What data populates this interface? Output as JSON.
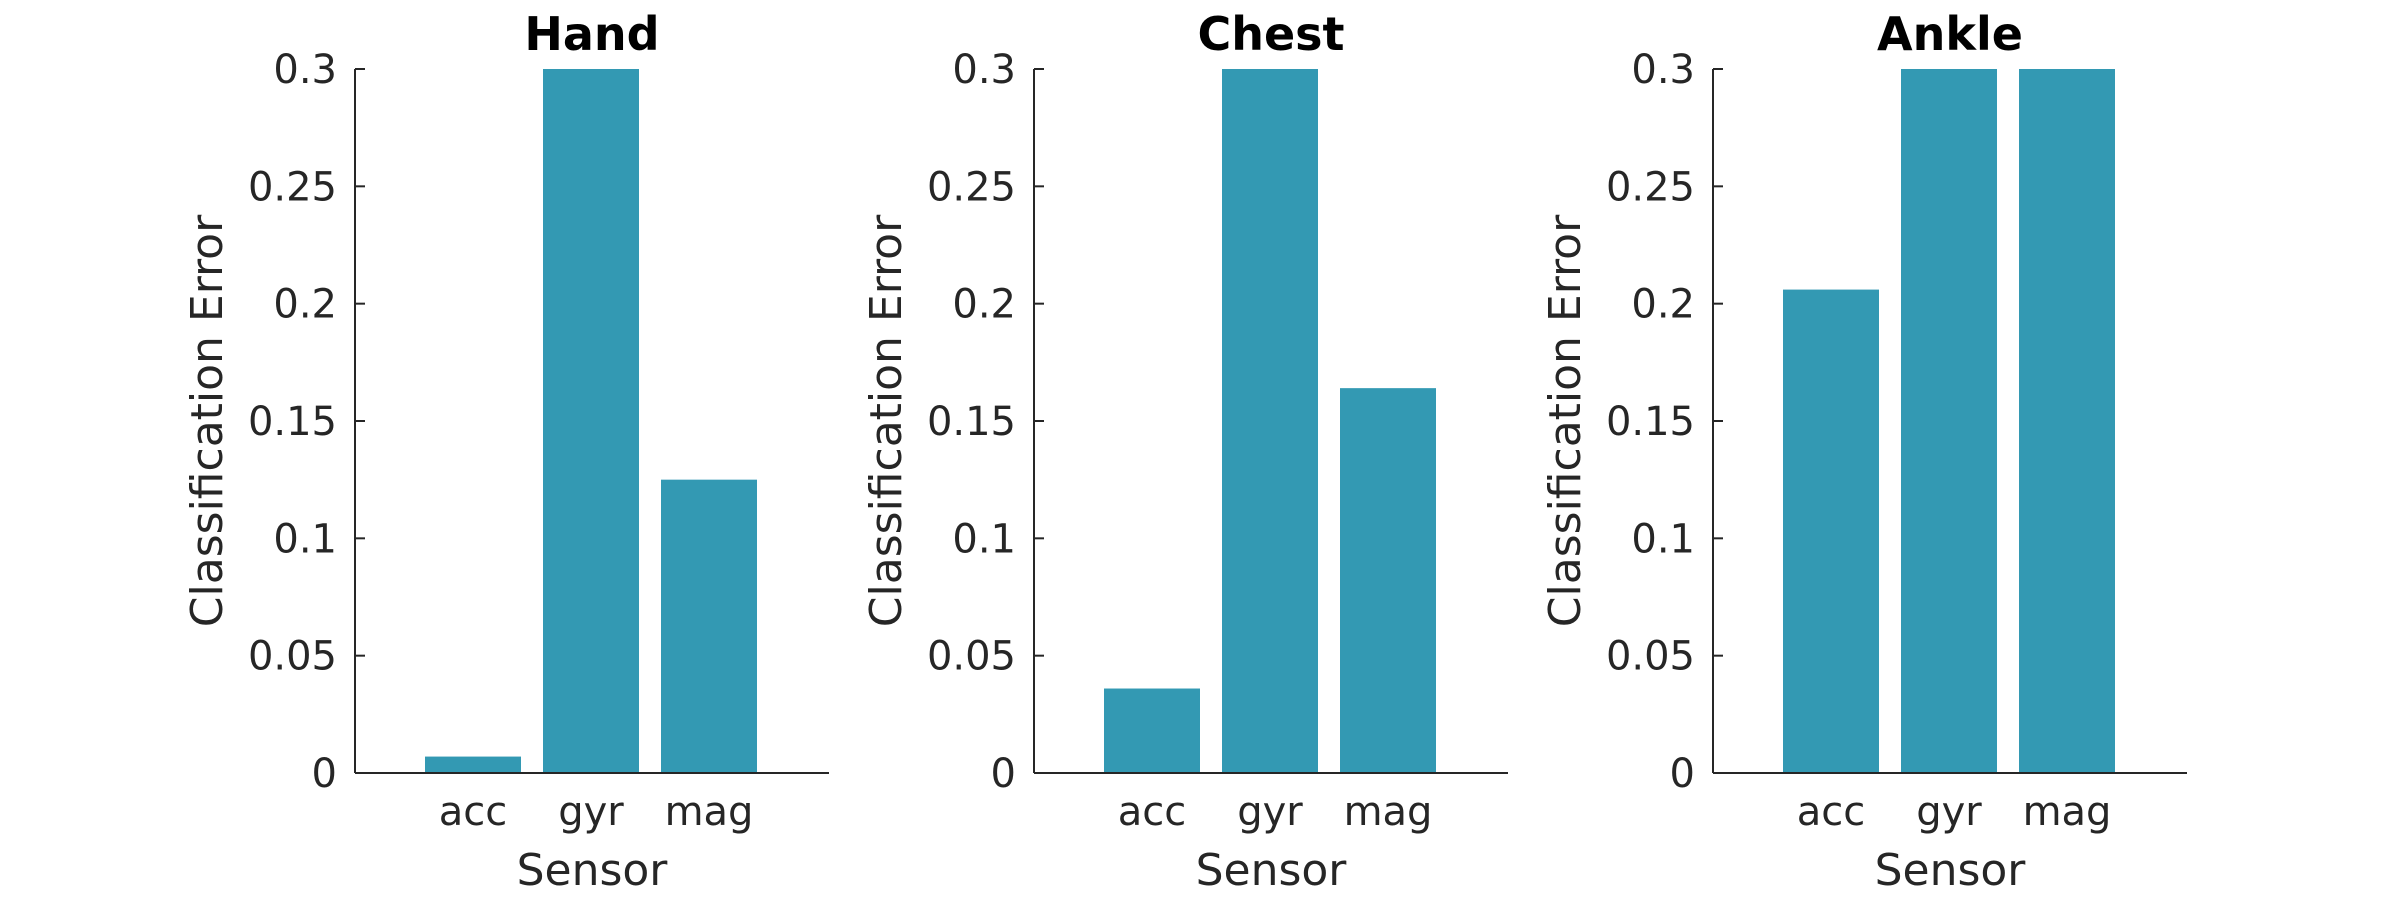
{
  "chart_data": [
    {
      "type": "bar",
      "title": "Hand",
      "xlabel": "Sensor",
      "ylabel": "Classification Error",
      "categories": [
        "acc",
        "gyr",
        "mag"
      ],
      "values": [
        0.007,
        0.3,
        0.125
      ],
      "ylim": [
        0,
        0.3
      ],
      "yticks": [
        "0",
        "0.05",
        "0.1",
        "0.15",
        "0.2",
        "0.25",
        "0.3"
      ],
      "grid": false
    },
    {
      "type": "bar",
      "title": "Chest",
      "xlabel": "Sensor",
      "ylabel": "Classification Error",
      "categories": [
        "acc",
        "gyr",
        "mag"
      ],
      "values": [
        0.036,
        0.3,
        0.164
      ],
      "ylim": [
        0,
        0.3
      ],
      "yticks": [
        "0",
        "0.05",
        "0.1",
        "0.15",
        "0.2",
        "0.25",
        "0.3"
      ],
      "grid": false
    },
    {
      "type": "bar",
      "title": "Ankle",
      "xlabel": "Sensor",
      "ylabel": "Classification Error",
      "categories": [
        "acc",
        "gyr",
        "mag"
      ],
      "values": [
        0.206,
        0.3,
        0.3
      ],
      "ylim": [
        0,
        0.3
      ],
      "yticks": [
        "0",
        "0.05",
        "0.1",
        "0.15",
        "0.2",
        "0.25",
        "0.3"
      ],
      "grid": false
    }
  ],
  "colors": {
    "bar": "#3399b3",
    "axis": "#262626"
  }
}
